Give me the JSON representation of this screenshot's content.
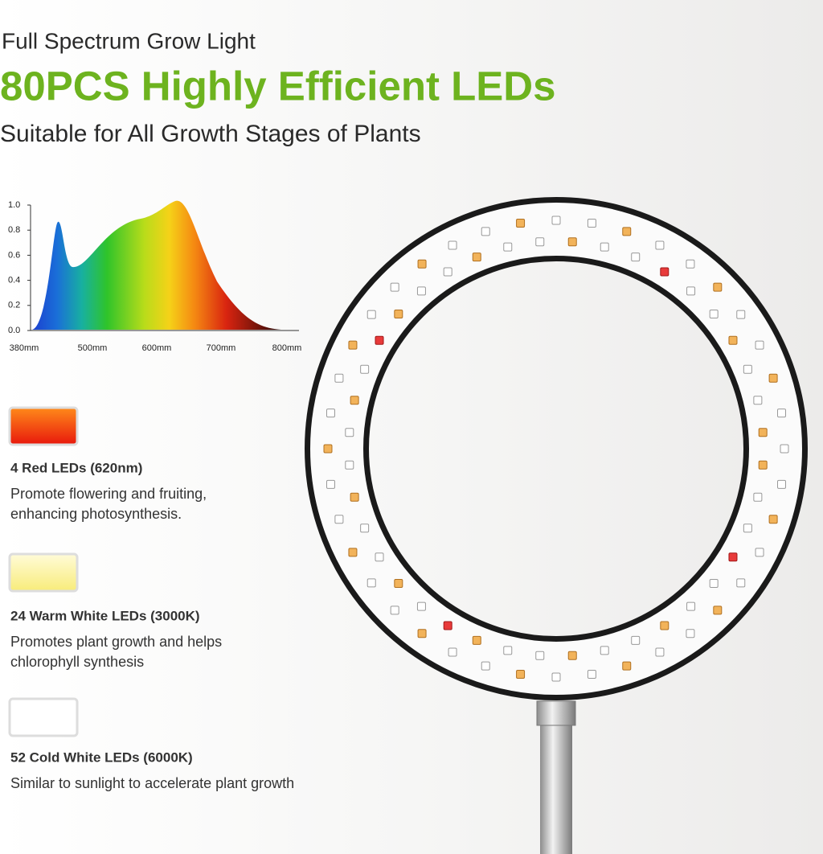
{
  "header": {
    "kicker": "Full Spectrum Grow Light",
    "title": "80PCS Highly Efficient LEDs",
    "tagline": "Suitable for All Growth Stages of Plants"
  },
  "spectrum": {
    "yticks": [
      "1.0",
      "0.8",
      "0.6",
      "0.4",
      "0.2",
      "0.0"
    ],
    "xticks": [
      "380mm",
      "500mm",
      "600mm",
      "700mm",
      "800mm"
    ]
  },
  "leds": [
    {
      "title": "4 Red LEDs (620nm)",
      "lines": [
        "Promote flowering and fruiting,",
        "enhancing photosynthesis."
      ]
    },
    {
      "title": "24 Warm White LEDs (3000K)",
      "lines": [
        "Promotes plant growth and helps",
        "chlorophyll synthesis"
      ]
    },
    {
      "title": "52 Cold White LEDs (6000K)",
      "lines": [
        "Similar to sunlight to accelerate plant growth"
      ]
    }
  ]
}
